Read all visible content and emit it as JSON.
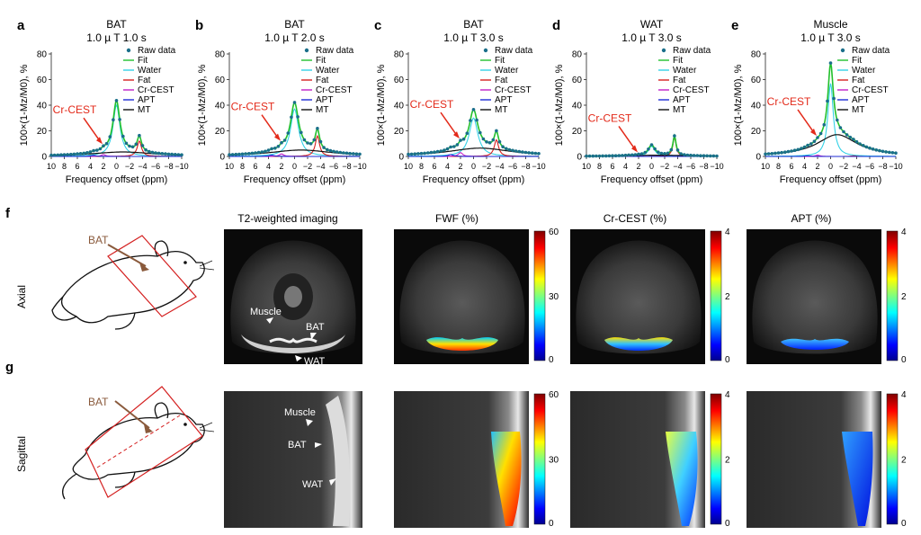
{
  "panel_letters": [
    "a",
    "b",
    "c",
    "d",
    "e",
    "f",
    "g"
  ],
  "legend_labels": [
    "Raw data",
    "Fit",
    "Water",
    "Fat",
    "Cr-CEST",
    "APT",
    "MT"
  ],
  "colors": {
    "raw": "#1a6f8a",
    "fit": "#22c02c",
    "water": "#34d1e6",
    "fat": "#d62020",
    "crcest": "#c020c8",
    "apt": "#1f2bd6",
    "mt": "#111111",
    "annotation": "#e32a1a",
    "bat_label": "#8a5a3c"
  },
  "chart_data": [
    {
      "type": "line",
      "panel": "a",
      "title": "BAT",
      "subtitle": "1.0 µ T 1.0 s",
      "xlabel": "Frequency offset (ppm)",
      "ylabel": "100×(1-Mz/M0), %",
      "xlim": [
        10,
        -10
      ],
      "ylim": [
        0,
        80
      ],
      "x_ticks": [
        10,
        8,
        6,
        4,
        2,
        0,
        -2,
        -4,
        -6,
        -8,
        -10
      ],
      "y_ticks": [
        0,
        20,
        40,
        60,
        80
      ],
      "annotation": "Cr-CEST",
      "components": {
        "water": {
          "amp": 40,
          "center": 0.0,
          "width": 1.3
        },
        "fat": {
          "amp": 12,
          "center": -3.5,
          "width": 0.8
        },
        "crcest": {
          "amp": 1.5,
          "center": 2.0,
          "width": 0.8
        },
        "apt": {
          "amp": 0.8,
          "center": 3.5,
          "width": 1.0
        },
        "mt": {
          "amp": 3.5,
          "center": -1.0,
          "width": 12
        }
      }
    },
    {
      "type": "line",
      "panel": "b",
      "title": "BAT",
      "subtitle": "1.0 µ T 2.0 s",
      "xlabel": "Frequency offset (ppm)",
      "ylabel": "100×(1-Mz/M0), %",
      "xlim": [
        10,
        -10
      ],
      "ylim": [
        0,
        80
      ],
      "x_ticks": [
        10,
        8,
        6,
        4,
        2,
        0,
        -2,
        -4,
        -6,
        -8,
        -10
      ],
      "y_ticks": [
        0,
        20,
        40,
        60,
        80
      ],
      "annotation": "Cr-CEST",
      "components": {
        "water": {
          "amp": 37,
          "center": 0.0,
          "width": 1.5
        },
        "fat": {
          "amp": 16,
          "center": -3.5,
          "width": 0.8
        },
        "crcest": {
          "amp": 2.0,
          "center": 2.0,
          "width": 0.8
        },
        "apt": {
          "amp": 1.0,
          "center": 3.5,
          "width": 1.0
        },
        "mt": {
          "amp": 5.0,
          "center": -1.0,
          "width": 12
        }
      }
    },
    {
      "type": "line",
      "panel": "c",
      "title": "BAT",
      "subtitle": "1.0 µ T 3.0 s",
      "xlabel": "Frequency offset (ppm)",
      "ylabel": "100×(1-Mz/M0), %",
      "xlim": [
        10,
        -10
      ],
      "ylim": [
        0,
        80
      ],
      "x_ticks": [
        10,
        8,
        6,
        4,
        2,
        0,
        -2,
        -4,
        -6,
        -8,
        -10
      ],
      "y_ticks": [
        0,
        20,
        40,
        60,
        80
      ],
      "annotation": "Cr-CEST",
      "components": {
        "water": {
          "amp": 30,
          "center": 0.0,
          "width": 1.6
        },
        "fat": {
          "amp": 13,
          "center": -3.5,
          "width": 0.8
        },
        "crcest": {
          "amp": 3.0,
          "center": 2.0,
          "width": 0.8
        },
        "apt": {
          "amp": 1.5,
          "center": 3.5,
          "width": 1.0
        },
        "mt": {
          "amp": 6.5,
          "center": -1.0,
          "width": 12
        }
      }
    },
    {
      "type": "line",
      "panel": "d",
      "title": "WAT",
      "subtitle": "1.0 µ T 3.0 s",
      "xlabel": "Frequency offset (ppm)",
      "ylabel": "100×(1-Mz/M0), %",
      "xlim": [
        10,
        -10
      ],
      "ylim": [
        0,
        80
      ],
      "x_ticks": [
        10,
        8,
        6,
        4,
        2,
        0,
        -2,
        -4,
        -6,
        -8,
        -10
      ],
      "y_ticks": [
        0,
        20,
        40,
        60,
        80
      ],
      "annotation": "Cr-CEST",
      "components": {
        "water": {
          "amp": 8,
          "center": 0.0,
          "width": 1.2
        },
        "fat": {
          "amp": 15,
          "center": -3.5,
          "width": 0.6
        },
        "crcest": {
          "amp": 0.3,
          "center": 2.0,
          "width": 0.8
        },
        "apt": {
          "amp": 0.2,
          "center": 3.5,
          "width": 1.0
        },
        "mt": {
          "amp": 1.0,
          "center": -1.0,
          "width": 12
        }
      }
    },
    {
      "type": "line",
      "panel": "e",
      "title": "Muscle",
      "subtitle": "1.0 µ T 3.0 s",
      "xlabel": "Frequency offset (ppm)",
      "ylabel": "100×(1-Mz/M0), %",
      "xlim": [
        10,
        -10
      ],
      "ylim": [
        0,
        80
      ],
      "x_ticks": [
        10,
        8,
        6,
        4,
        2,
        0,
        -2,
        -4,
        -6,
        -8,
        -10
      ],
      "y_ticks": [
        0,
        20,
        40,
        60,
        80
      ],
      "annotation": "Cr-CEST",
      "components": {
        "water": {
          "amp": 57,
          "center": 0.0,
          "width": 1.0
        },
        "fat": {
          "amp": 0.5,
          "center": -3.5,
          "width": 0.8
        },
        "crcest": {
          "amp": 1.0,
          "center": 2.0,
          "width": 0.8
        },
        "apt": {
          "amp": 0.5,
          "center": 3.5,
          "width": 1.0
        },
        "mt": {
          "amp": 17,
          "center": -1.0,
          "width": 7.5
        }
      }
    }
  ],
  "imaging": {
    "row_labels": [
      "Axial",
      "Sagittal"
    ],
    "column_titles": [
      "T2-weighted imaging",
      "FWF (%)",
      "Cr-CEST (%)",
      "APT (%)"
    ],
    "bat_label": "BAT",
    "axial_annotations": [
      "Muscle",
      "BAT",
      "WAT"
    ],
    "sagittal_annotations": [
      "Muscle",
      "BAT",
      "WAT"
    ],
    "colorbars": [
      {
        "ticks": [
          "60",
          "30",
          "0"
        ],
        "range": [
          0,
          60
        ]
      },
      {
        "ticks": [
          "4",
          "2",
          "0"
        ],
        "range": [
          0,
          4
        ]
      },
      {
        "ticks": [
          "4",
          "2",
          "0"
        ],
        "range": [
          0,
          4
        ]
      }
    ]
  }
}
